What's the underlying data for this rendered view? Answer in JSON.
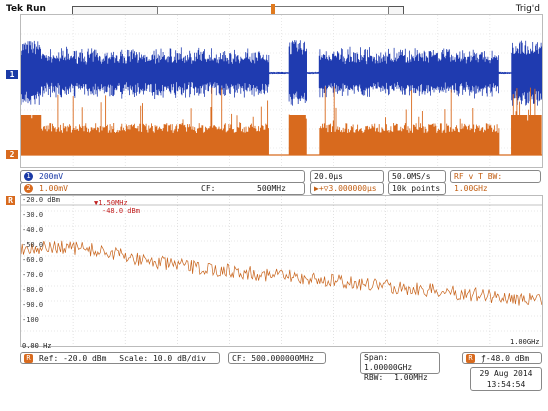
{
  "header": {
    "status": "Tek Run",
    "trigger_status": "Trig'd"
  },
  "channels": {
    "ch1": {
      "number": "1",
      "volts": "200mV",
      "color": "#1a3aa6"
    },
    "ch2": {
      "number": "2",
      "volts": "1.00mV",
      "color": "#d86a1e"
    },
    "cf": "CF:",
    "cf_value": "500MHz"
  },
  "timebase": {
    "scale": "20.0µs",
    "delay": "3.000000µs",
    "sample_rate": "50.0MS/s",
    "record_length": "10k points",
    "rf_label": "RF v T BW:",
    "rf_bw": "1.00GHz"
  },
  "spectrum": {
    "marker_label_1": "1.50MHz",
    "marker_label_2": "-48.0 dBm",
    "start_freq": "0.00 Hz",
    "stop_freq": "1.00GHz",
    "y_labels": [
      "-20.0 dBm",
      "-30.0",
      "-40.0",
      "-50.0",
      "-60.0",
      "-70.0",
      "-80.0",
      "-90.0",
      "-100"
    ],
    "ref": "Ref: -20.0 dBm",
    "scale": "Scale: 10.0 dB/div",
    "cf": "CF: 500.000000MHz",
    "span_label": "Span:",
    "span_value": "1.00000GHz",
    "rbw_label": "RBW:",
    "rbw_value": "1.00MHz",
    "trigger_level": "-48.0 dBm"
  },
  "datetime": {
    "date": "29 Aug 2014",
    "time": "13:54:54"
  }
}
